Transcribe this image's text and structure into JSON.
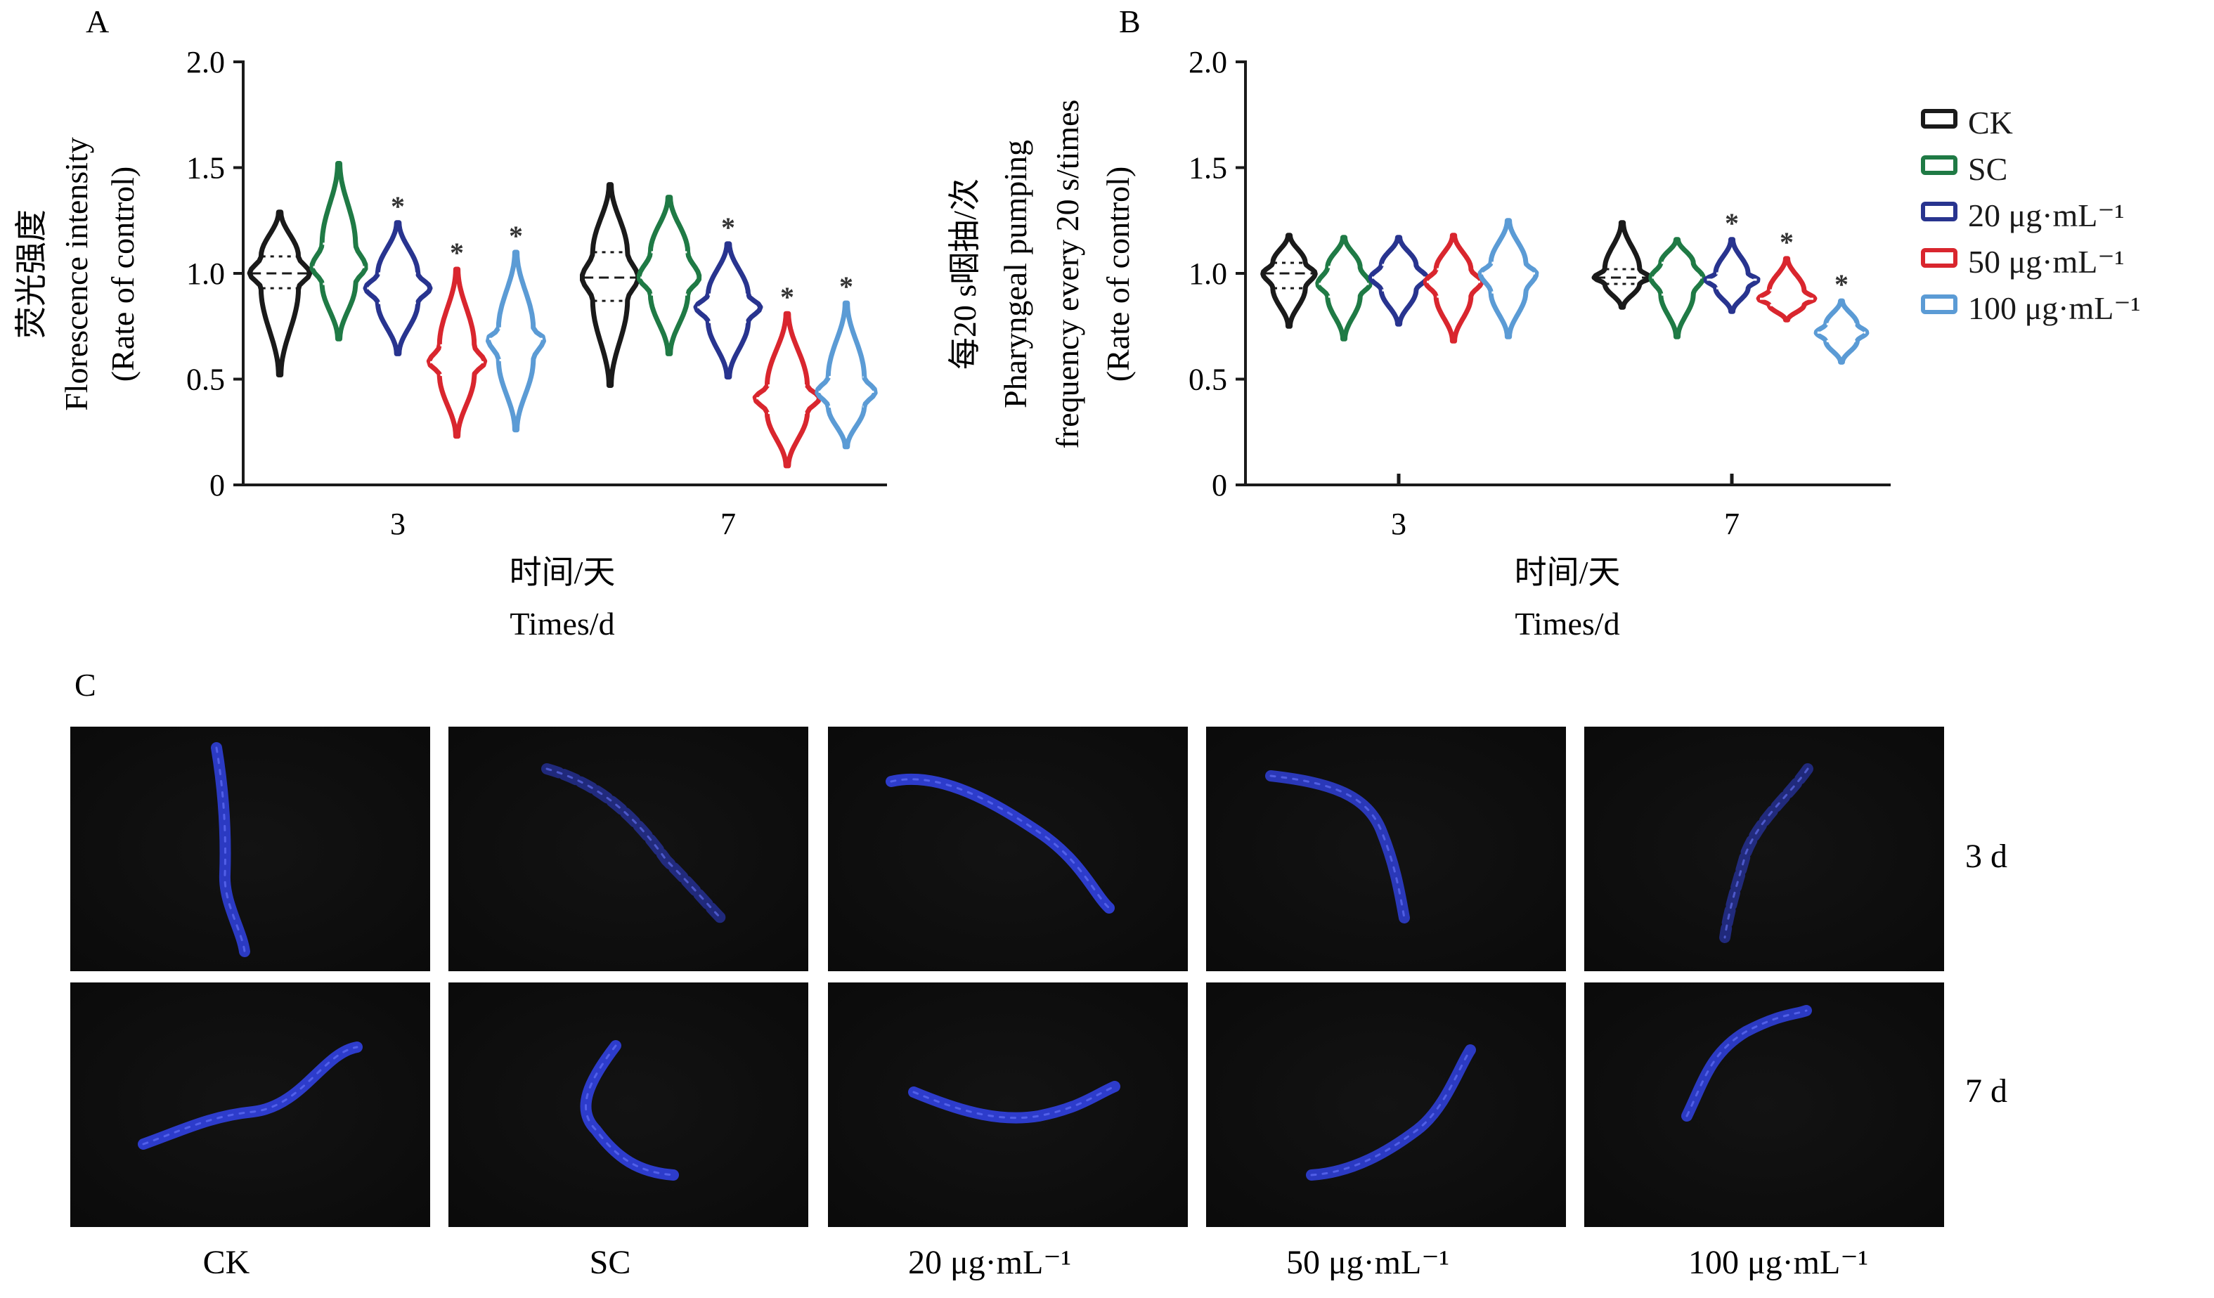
{
  "panels": {
    "a": {
      "letter": "A",
      "ylabel_cn": "荧光强度",
      "ylabel_en_1": "Florescence intensity",
      "ylabel_en_2": "(Rate of control)",
      "xlabel_cn": "时间/天",
      "xlabel_en": "Times/d"
    },
    "b": {
      "letter": "B",
      "ylabel_cn": "每20 s咽抽/次",
      "ylabel_en_1": "Pharyngeal pumping",
      "ylabel_en_2": "frequency every 20 s/times",
      "ylabel_en_3": "(Rate of control)",
      "xlabel_cn": "时间/天",
      "xlabel_en": "Times/d"
    },
    "c": {
      "letter": "C",
      "row_labels": [
        "3 d",
        "7 d"
      ],
      "column_labels": [
        "CK",
        "SC",
        "20 μg·mL⁻¹",
        "50 μg·mL⁻¹",
        "100 μg·mL⁻¹"
      ]
    }
  },
  "legend": [
    {
      "label": "CK",
      "color": "#1a1a1a"
    },
    {
      "label": "SC",
      "color": "#1f7a45"
    },
    {
      "label": "20 μg·mL⁻¹",
      "color": "#28348f"
    },
    {
      "label": "50 μg·mL⁻¹",
      "color": "#d9262e"
    },
    {
      "label": "100 μg·mL⁻¹",
      "color": "#5b9bd5"
    }
  ],
  "chart_data": [
    {
      "panel": "A",
      "type": "violin",
      "categories": [
        "3",
        "7"
      ],
      "ylim": [
        0,
        2.0
      ],
      "yticks": [
        "0",
        "0.5",
        "1.0",
        "1.5",
        "2.0"
      ],
      "ylabel": "荧光强度 Florescence intensity (Rate of control)",
      "xlabel": "时间/天 Times/d",
      "series": [
        {
          "name": "CK",
          "min": [
            0.52,
            0.47
          ],
          "q1": [
            0.93,
            0.87
          ],
          "median": [
            1.0,
            0.98
          ],
          "q3": [
            1.08,
            1.1
          ],
          "max": [
            1.29,
            1.42
          ],
          "width": [
            0.28,
            0.26
          ],
          "significant": [
            false,
            false
          ]
        },
        {
          "name": "SC",
          "min": [
            0.69,
            0.62
          ],
          "q1": [
            0.95,
            0.9
          ],
          "median": [
            1.03,
            0.98
          ],
          "q3": [
            1.14,
            1.1
          ],
          "max": [
            1.52,
            1.36
          ],
          "width": [
            0.25,
            0.28
          ],
          "significant": [
            false,
            false
          ]
        },
        {
          "name": "20 μg·mL⁻¹",
          "min": [
            0.62,
            0.51
          ],
          "q1": [
            0.86,
            0.77
          ],
          "median": [
            0.93,
            0.84
          ],
          "q3": [
            1.0,
            0.9
          ],
          "max": [
            1.24,
            1.14
          ],
          "width": [
            0.3,
            0.3
          ],
          "significant": [
            true,
            true
          ]
        },
        {
          "name": "50 μg·mL⁻¹",
          "min": [
            0.23,
            0.09
          ],
          "q1": [
            0.52,
            0.34
          ],
          "median": [
            0.58,
            0.41
          ],
          "q3": [
            0.66,
            0.47
          ],
          "max": [
            1.02,
            0.81
          ],
          "width": [
            0.26,
            0.3
          ],
          "significant": [
            true,
            true
          ]
        },
        {
          "name": "100 μg·mL⁻¹",
          "min": [
            0.26,
            0.18
          ],
          "q1": [
            0.59,
            0.37
          ],
          "median": [
            0.69,
            0.44
          ],
          "q3": [
            0.74,
            0.51
          ],
          "max": [
            1.1,
            0.86
          ],
          "width": [
            0.26,
            0.27
          ],
          "significant": [
            true,
            true
          ]
        }
      ]
    },
    {
      "panel": "B",
      "type": "violin",
      "categories": [
        "3",
        "7"
      ],
      "ylim": [
        0,
        2.0
      ],
      "yticks": [
        "0",
        "0.5",
        "1.0",
        "1.5",
        "2.0"
      ],
      "ylabel": "每20 s咽抽/次 Pharyngeal pumping frequency every 20 s/times (Rate of control)",
      "xlabel": "时间/天 Times/d",
      "series": [
        {
          "name": "CK",
          "min": [
            0.75,
            0.84
          ],
          "q1": [
            0.93,
            0.95
          ],
          "median": [
            1.0,
            0.98
          ],
          "q3": [
            1.05,
            1.02
          ],
          "max": [
            1.18,
            1.24
          ],
          "width": [
            0.28,
            0.3
          ],
          "significant": [
            false,
            false
          ]
        },
        {
          "name": "SC",
          "min": [
            0.69,
            0.7
          ],
          "q1": [
            0.89,
            0.9
          ],
          "median": [
            0.95,
            0.98
          ],
          "q3": [
            1.03,
            1.05
          ],
          "max": [
            1.17,
            1.16
          ],
          "width": [
            0.28,
            0.28
          ],
          "significant": [
            false,
            false
          ]
        },
        {
          "name": "20 μg·mL⁻¹",
          "min": [
            0.76,
            0.82
          ],
          "q1": [
            0.92,
            0.93
          ],
          "median": [
            0.98,
            0.97
          ],
          "q3": [
            1.04,
            1.0
          ],
          "max": [
            1.17,
            1.16
          ],
          "width": [
            0.3,
            0.28
          ],
          "significant": [
            false,
            true
          ]
        },
        {
          "name": "50 μg·mL⁻¹",
          "min": [
            0.68,
            0.78
          ],
          "q1": [
            0.89,
            0.85
          ],
          "median": [
            0.96,
            0.88
          ],
          "q3": [
            1.02,
            0.92
          ],
          "max": [
            1.18,
            1.07
          ],
          "width": [
            0.3,
            0.3
          ],
          "significant": [
            false,
            true
          ]
        },
        {
          "name": "100 μg·mL⁻¹",
          "min": [
            0.7,
            0.58
          ],
          "q1": [
            0.91,
            0.68
          ],
          "median": [
            1.0,
            0.72
          ],
          "q3": [
            1.05,
            0.76
          ],
          "max": [
            1.25,
            0.87
          ],
          "width": [
            0.3,
            0.27
          ],
          "significant": [
            false,
            true
          ]
        }
      ]
    }
  ]
}
